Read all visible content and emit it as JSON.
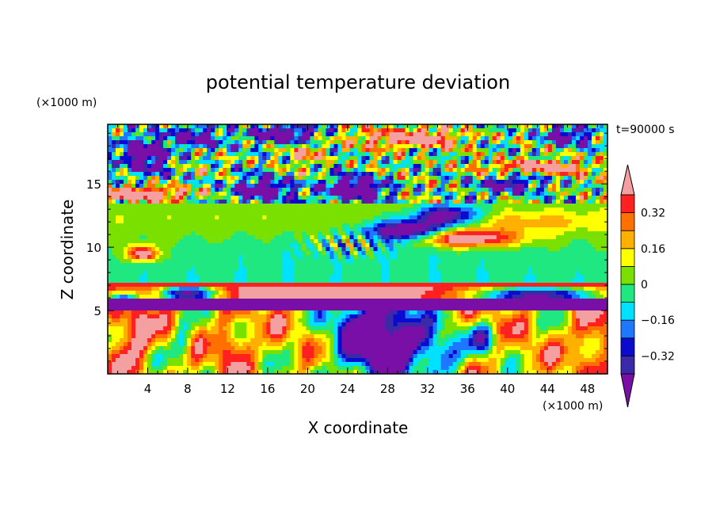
{
  "chart_data": {
    "type": "heatmap",
    "title": "potential temperature deviation",
    "xlabel": "X coordinate",
    "ylabel": "Z coordinate",
    "x_unit": "(×1000 m)",
    "y_unit": "(×1000 m)",
    "time_label": "t=90000 s",
    "xlim": [
      0,
      50
    ],
    "ylim": [
      0,
      19.7
    ],
    "x_ticks": [
      4,
      8,
      12,
      16,
      20,
      24,
      28,
      32,
      36,
      40,
      44,
      48
    ],
    "y_ticks": [
      5,
      10,
      15
    ],
    "colorbar": {
      "levels": [
        -0.4,
        -0.32,
        -0.24,
        -0.16,
        -0.08,
        0,
        0.08,
        0.16,
        0.24,
        0.32,
        0.4
      ],
      "labels": [
        {
          "value": 0.32,
          "text": "0.32"
        },
        {
          "value": 0.16,
          "text": "0.16"
        },
        {
          "value": 0,
          "text": "0"
        },
        {
          "value": -0.16,
          "text": "−0.16"
        },
        {
          "value": -0.32,
          "text": "−0.32"
        }
      ],
      "colors": [
        "#7a0fa8",
        "#3a2aa8",
        "#0a0ad0",
        "#1e78ff",
        "#00e0ff",
        "#20e880",
        "#7ae000",
        "#ffff00",
        "#ffb000",
        "#ff7000",
        "#ff2020",
        "#f5a0a0"
      ]
    }
  }
}
